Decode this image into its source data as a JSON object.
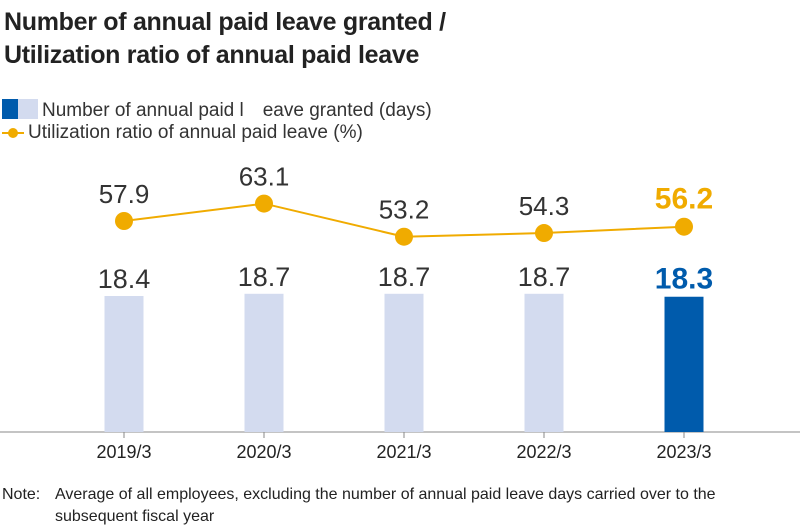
{
  "title_line1": "Number of annual paid leave granted /",
  "title_line2": "Utilization ratio of annual paid leave",
  "legend": {
    "bars": "Number of annual paid l　eave granted (days)",
    "line": "Utilization ratio of annual paid leave (%)"
  },
  "note_label": "Note:",
  "note_text": "Average of all employees, excluding the number of annual paid leave days carried over to the subsequent fiscal year",
  "colors": {
    "bar_light": "#d3dbef",
    "bar_highlight": "#005bac",
    "line": "#f0ab00",
    "label": "#333333"
  },
  "chart_data": {
    "type": "bar+line",
    "categories": [
      "2019/3",
      "2020/3",
      "2021/3",
      "2022/3",
      "2023/3"
    ],
    "series": [
      {
        "name": "Number of annual paid leave granted (days)",
        "type": "bar",
        "values": [
          18.4,
          18.7,
          18.7,
          18.7,
          18.3
        ]
      },
      {
        "name": "Utilization ratio of annual paid leave (%)",
        "type": "line",
        "values": [
          57.9,
          63.1,
          53.2,
          54.3,
          56.2
        ]
      }
    ],
    "value_labels_bar": [
      "18.4",
      "18.7",
      "18.7",
      "18.7",
      "18.3"
    ],
    "value_labels_line": [
      "57.9",
      "63.1",
      "53.2",
      "54.3",
      "56.2"
    ],
    "highlight_index": 4,
    "grid": false
  }
}
